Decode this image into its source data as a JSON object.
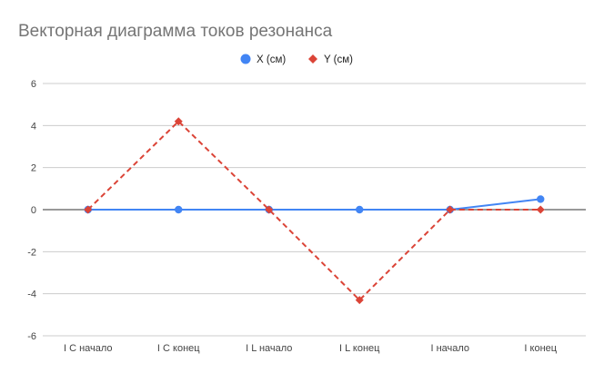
{
  "chart_data": {
    "type": "line",
    "title": "Векторная диаграмма токов резонанса",
    "categories": [
      "I C начало",
      "I C конец",
      "I L начало",
      "I L конец",
      "I начало",
      "I конец"
    ],
    "series": [
      {
        "name": "X (см)",
        "values": [
          0,
          0,
          0,
          0,
          0,
          0.5
        ],
        "color": "#4285f4",
        "marker": "circle",
        "line_style": "solid"
      },
      {
        "name": "Y (см)",
        "values": [
          0,
          4.2,
          0,
          -4.3,
          0,
          0
        ],
        "color": "#db4437",
        "marker": "diamond",
        "line_style": "dashed"
      }
    ],
    "ylim": [
      -6,
      6
    ],
    "yticks": [
      -6,
      -4,
      -2,
      0,
      2,
      4,
      6
    ],
    "grid": true,
    "legend_position": "top"
  }
}
